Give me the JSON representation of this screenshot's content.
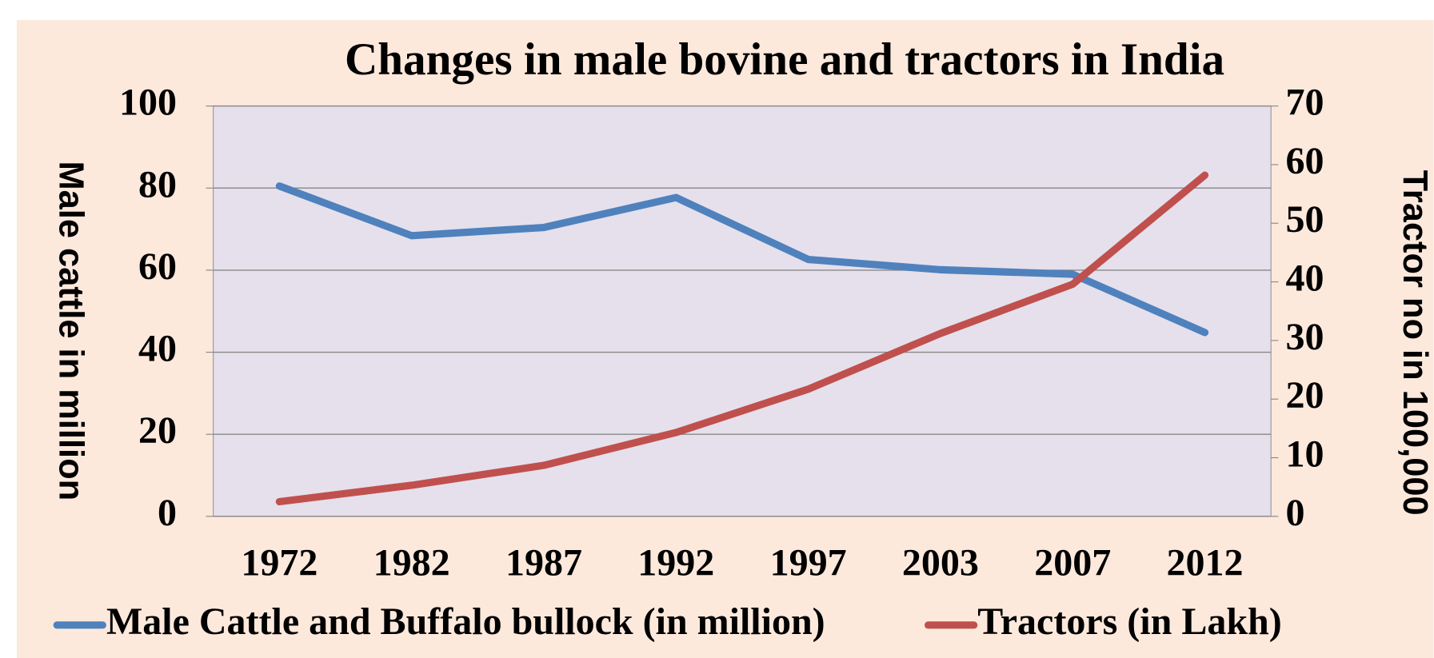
{
  "chart_data": {
    "type": "line",
    "title": "Changes in male bovine and tractors in India",
    "y_label": "Male cattle  in million",
    "y2_label": "Tractor no in 100,000",
    "categories": [
      "1972",
      "1982",
      "1987",
      "1992",
      "1997",
      "2003",
      "2007",
      "2012"
    ],
    "series": [
      {
        "name": "Male Cattle and Buffalo bullock (in million)",
        "color": "#4f81bd",
        "values": [
          80.5,
          68.4,
          70.4,
          77.7,
          62.6,
          60.1,
          59.0,
          44.8
        ]
      },
      {
        "name": "Tractors (in Lakh)",
        "color": "#c0504d",
        "axis": "y2",
        "values": [
          2.5,
          5.3,
          8.7,
          14.3,
          21.7,
          31.2,
          39.6,
          58.2
        ]
      }
    ],
    "ylim": [
      0,
      100
    ],
    "yticks": [
      0,
      20,
      40,
      60,
      80,
      100
    ],
    "y2lim": [
      0,
      70
    ],
    "y2ticks": [
      0,
      10,
      20,
      30,
      40,
      50,
      60,
      70
    ],
    "grid": true,
    "legend": "bottom"
  }
}
